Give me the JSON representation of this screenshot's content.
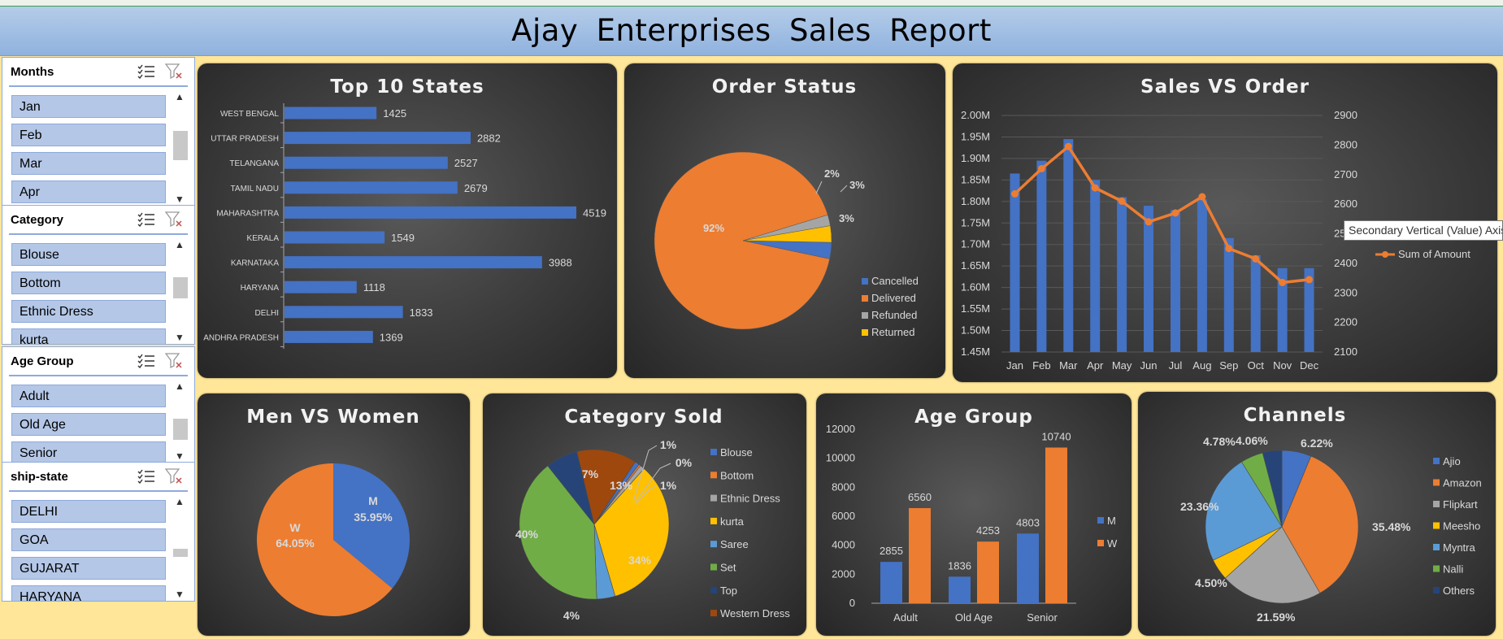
{
  "report_title": "Ajay Enterprises  Sales  Report",
  "colors": {
    "blue": "#4472c4",
    "orange": "#ed7d31",
    "gray": "#a5a5a5",
    "yellow": "#ffc000",
    "lightblue": "#5b9bd5",
    "green": "#70ad47",
    "navy": "#264478",
    "brown": "#9e480e",
    "label_gold": "#bf9000"
  },
  "slicers": [
    {
      "title": "Months",
      "items": [
        "Jan",
        "Feb",
        "Mar",
        "Apr"
      ]
    },
    {
      "title": "Category",
      "items": [
        "Blouse",
        "Bottom",
        "Ethnic Dress",
        "kurta"
      ]
    },
    {
      "title": "Age Group",
      "items": [
        "Adult",
        "Old Age",
        "Senior"
      ]
    },
    {
      "title": "ship-state",
      "items": [
        "DELHI",
        "GOA",
        "GUJARAT",
        "HARYANA"
      ]
    }
  ],
  "tooltip": "Secondary Vertical (Value) Axis",
  "chart_data": [
    {
      "type": "bar",
      "orientation": "horizontal",
      "title": "Top 10 States",
      "categories": [
        "WEST BENGAL",
        "UTTAR PRADESH",
        "TELANGANA",
        "TAMIL NADU",
        "MAHARASHTRA",
        "KERALA",
        "KARNATAKA",
        "HARYANA",
        "DELHI",
        "ANDHRA PRADESH"
      ],
      "values": [
        1425,
        2882,
        2527,
        2679,
        4519,
        1549,
        3988,
        1118,
        1833,
        1369
      ]
    },
    {
      "type": "pie",
      "title": "Order Status",
      "labels": [
        "Cancelled",
        "Delivered",
        "Refunded",
        "Returned"
      ],
      "values": [
        3,
        92,
        2,
        3
      ],
      "data_labels": [
        "3%",
        "92%",
        "2%",
        "3%"
      ],
      "legend": "bottom-right"
    },
    {
      "type": "bar+line",
      "title": "Sales VS Order",
      "categories": [
        "Jan",
        "Feb",
        "Mar",
        "Apr",
        "May",
        "Jun",
        "Jul",
        "Aug",
        "Sep",
        "Oct",
        "Nov",
        "Dec"
      ],
      "series": [
        {
          "name": "Sum of Amount",
          "type": "bar",
          "axis": "primary",
          "values": [
            1.865,
            1.895,
            1.945,
            1.85,
            1.81,
            1.79,
            1.78,
            1.805,
            1.715,
            1.675,
            1.645,
            1.645
          ]
        },
        {
          "name": "Sum of Amount",
          "type": "line",
          "axis": "secondary",
          "values": [
            2635,
            2720,
            2795,
            2655,
            2610,
            2540,
            2570,
            2625,
            2450,
            2415,
            2335,
            2345
          ]
        }
      ],
      "y_ticks": [
        "2.00M",
        "1.95M",
        "1.90M",
        "1.85M",
        "1.80M",
        "1.75M",
        "1.70M",
        "1.65M",
        "1.60M",
        "1.55M",
        "1.50M",
        "1.45M"
      ],
      "y2_ticks": [
        "2900",
        "2800",
        "2700",
        "2600",
        "2500",
        "2400",
        "2300",
        "2200",
        "2100"
      ],
      "ylim": [
        1.45,
        2.0
      ],
      "y2lim": [
        2100,
        2900
      ],
      "legend": [
        "Sum of Amount"
      ]
    },
    {
      "type": "pie",
      "title": "Men VS Women",
      "labels": [
        "M",
        "W"
      ],
      "values": [
        35.95,
        64.05
      ],
      "data_labels": [
        "35.95%",
        "64.05%"
      ]
    },
    {
      "type": "pie",
      "title": "Category Sold",
      "labels": [
        "Blouse",
        "Bottom",
        "Ethnic Dress",
        "kurta",
        "Saree",
        "Set",
        "Top",
        "Western Dress"
      ],
      "values": [
        1,
        0.4,
        1,
        34,
        4,
        40,
        7,
        13
      ],
      "data_labels": [
        "1%",
        "0%",
        "1%",
        "34%",
        "4%",
        "40%",
        "7%",
        "13%"
      ],
      "legend": "right"
    },
    {
      "type": "bar",
      "title": "Age Group",
      "categories": [
        "Adult",
        "Old Age",
        "Senior"
      ],
      "series": [
        {
          "name": "M",
          "values": [
            2855,
            1836,
            4803
          ]
        },
        {
          "name": "W",
          "values": [
            6560,
            4253,
            10740
          ]
        }
      ],
      "y_ticks": [
        "12000",
        "10000",
        "8000",
        "6000",
        "4000",
        "2000",
        "0"
      ],
      "ylim": [
        0,
        12000
      ],
      "legend": "right"
    },
    {
      "type": "pie",
      "title": "Channels",
      "labels": [
        "Ajio",
        "Amazon",
        "Flipkart",
        "Meesho",
        "Myntra",
        "Nalli",
        "Others"
      ],
      "values": [
        6.22,
        35.48,
        21.59,
        4.5,
        23.36,
        4.78,
        4.06
      ],
      "data_labels": [
        "6.22%",
        "35.48%",
        "21.59%",
        "4.50%",
        "23.36%",
        "4.78%",
        "4.06%"
      ],
      "legend": "right"
    }
  ]
}
